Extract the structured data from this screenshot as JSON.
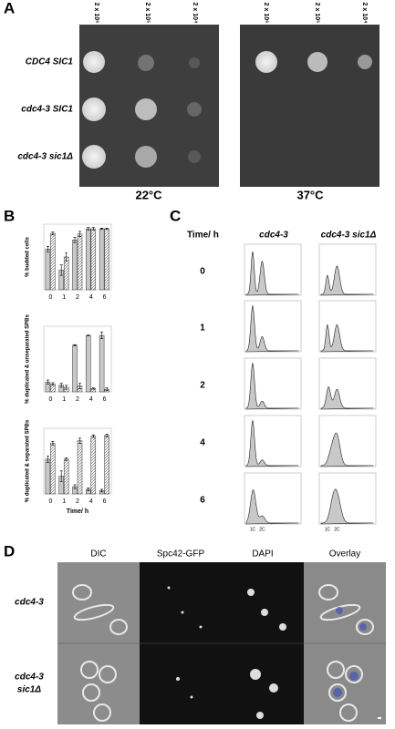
{
  "panel_a": {
    "label": "A",
    "dilutions": [
      "2 x 10⁶",
      "2 x 10⁵",
      "2 x 10⁴"
    ],
    "strains": [
      "CDC4 SIC1",
      "cdc4-3 SIC1",
      "cdc4-3 sic1Δ"
    ],
    "temperatures": [
      "22°C",
      "37°C"
    ]
  },
  "panel_b": {
    "label": "B"
  },
  "chart_data": [
    {
      "type": "bar",
      "y_label": "% budded cells",
      "categories": [
        "0",
        "1",
        "2",
        "4",
        "6"
      ],
      "ylim": [
        0,
        100
      ],
      "series": [
        {
          "color": "#c8c8c8",
          "fill": "solid",
          "values": [
            62,
            30,
            76,
            93,
            93
          ],
          "errors": [
            4,
            8,
            4,
            2,
            1
          ]
        },
        {
          "color": "#ffffff",
          "fill": "hatched",
          "values": [
            86,
            50,
            85,
            93,
            93
          ],
          "errors": [
            2,
            6,
            4,
            2,
            1
          ]
        }
      ]
    },
    {
      "type": "bar",
      "y_label": "% duplicated & unseparated SPBs",
      "categories": [
        "0",
        "1",
        "2",
        "4",
        "6"
      ],
      "ylim": [
        0,
        100
      ],
      "series": [
        {
          "color": "#c8c8c8",
          "fill": "solid",
          "values": [
            15,
            10,
            71,
            86,
            86
          ],
          "errors": [
            3,
            3,
            1,
            0.5,
            5
          ]
        },
        {
          "color": "#ffffff",
          "fill": "hatched",
          "values": [
            12,
            7,
            9,
            5,
            4
          ],
          "errors": [
            2,
            3,
            4,
            1,
            2
          ]
        }
      ]
    },
    {
      "type": "bar",
      "y_label": "% duplicated & separated SPBs",
      "x_label": "Time/ h",
      "categories": [
        "0",
        "1",
        "2",
        "4",
        "6"
      ],
      "ylim": [
        0,
        100
      ],
      "series": [
        {
          "color": "#c8c8c8",
          "fill": "solid",
          "values": [
            53,
            27,
            11,
            7,
            5
          ],
          "errors": [
            5,
            8,
            3,
            2,
            2
          ]
        },
        {
          "color": "#ffffff",
          "fill": "hatched",
          "values": [
            77,
            53,
            81,
            88,
            89
          ],
          "errors": [
            3,
            2,
            4,
            2,
            2
          ]
        }
      ]
    }
  ],
  "panel_c": {
    "label": "C",
    "time_header": "Time/ h",
    "strains": [
      "cdc4-3",
      "cdc4-3 sic1Δ"
    ],
    "times": [
      "0",
      "1",
      "2",
      "4",
      "6"
    ],
    "peaks": [
      "1C",
      "2C"
    ]
  },
  "panel_d": {
    "label": "D",
    "channels": [
      "DIC",
      "Spc42-GFP",
      "DAPI",
      "Overlay"
    ],
    "strains": [
      [
        "cdc4-3"
      ],
      [
        "cdc4-3",
        "sic1Δ"
      ]
    ]
  }
}
